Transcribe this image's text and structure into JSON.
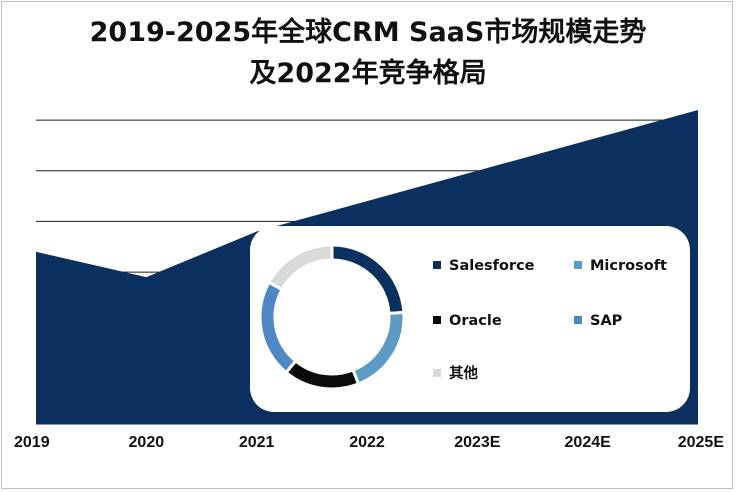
{
  "title_line1": "2019-2025年全球CRM SaaS市场规模走势",
  "title_line2": "及2022年竞争格局",
  "chart_data": [
    {
      "type": "area",
      "x": [
        "2019",
        "2020",
        "2021",
        "2022",
        "2023E",
        "2024E",
        "2025E"
      ],
      "series": [
        {
          "values": [
            34,
            29,
            38,
            44,
            50,
            56,
            62
          ]
        }
      ],
      "ylim": [
        0,
        62
      ],
      "grid": true,
      "fill_color": "#0b3060"
    },
    {
      "type": "pie",
      "style": "donut",
      "labels": [
        "Salesforce",
        "Microsoft",
        "Oracle",
        "SAP",
        "其他"
      ],
      "values": [
        24,
        20,
        17,
        22,
        17
      ],
      "colors": [
        "#0b3060",
        "#5b9bc6",
        "#0a0a0a",
        "#4f87c4",
        "#d9d9d9"
      ],
      "legend": "right"
    }
  ]
}
